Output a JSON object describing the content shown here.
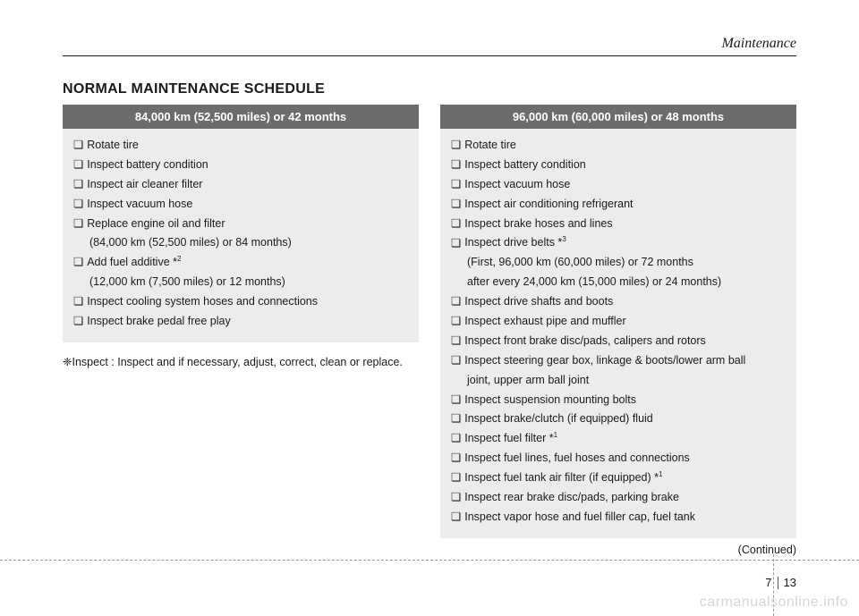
{
  "header": {
    "title": "Maintenance"
  },
  "section_title": "NORMAL MAINTENANCE SCHEDULE",
  "left": {
    "header": "84,000 km (52,500 miles) or 42 months",
    "items": [
      {
        "text": "Rotate tire"
      },
      {
        "text": "Inspect battery condition"
      },
      {
        "text": "Inspect air cleaner filter"
      },
      {
        "text": "Inspect vacuum hose"
      },
      {
        "text": "Replace engine oil and filter",
        "sub": "(84,000 km (52,500 miles) or 84 months)"
      },
      {
        "text": "Add fuel additive *",
        "sup": "2",
        "sub": "(12,000 km (7,500 miles) or 12 months)"
      },
      {
        "text": "Inspect cooling system hoses and connections"
      },
      {
        "text": "Inspect brake pedal free play"
      }
    ],
    "note_mark": "❈ ",
    "note_label": "Inspect : ",
    "note_text": "Inspect and if necessary, adjust, correct, clean or replace."
  },
  "right": {
    "header": "96,000 km (60,000 miles) or 48 months",
    "items": [
      {
        "text": "Rotate tire"
      },
      {
        "text": "Inspect battery condition"
      },
      {
        "text": "Inspect vacuum hose"
      },
      {
        "text": "Inspect air conditioning refrigerant"
      },
      {
        "text": "Inspect brake hoses and lines"
      },
      {
        "text": "Inspect drive belts *",
        "sup": "3",
        "sub": "(First, 96,000 km (60,000 miles) or 72 months",
        "sub2": "after every 24,000 km (15,000 miles) or 24 months)"
      },
      {
        "text": "Inspect drive shafts and boots"
      },
      {
        "text": "Inspect exhaust pipe and muffler"
      },
      {
        "text": "Inspect front brake disc/pads, calipers and rotors"
      },
      {
        "text": "Inspect steering gear box, linkage & boots/lower arm ball",
        "sub_plain": "joint, upper arm ball joint"
      },
      {
        "text": "Inspect suspension mounting bolts"
      },
      {
        "text": "Inspect brake/clutch (if equipped) fluid"
      },
      {
        "text": "Inspect fuel filter *",
        "sup": "1"
      },
      {
        "text": "Inspect fuel lines, fuel hoses and connections"
      },
      {
        "text": "Inspect fuel tank air filter (if equipped) *",
        "sup": "1"
      },
      {
        "text": "Inspect rear brake disc/pads, parking brake"
      },
      {
        "text": "Inspect vapor hose and fuel filler cap, fuel tank"
      }
    ],
    "continued": "(Continued)"
  },
  "page": {
    "chapter": "7",
    "number": "13"
  },
  "watermark": "carmanualsonline.info"
}
